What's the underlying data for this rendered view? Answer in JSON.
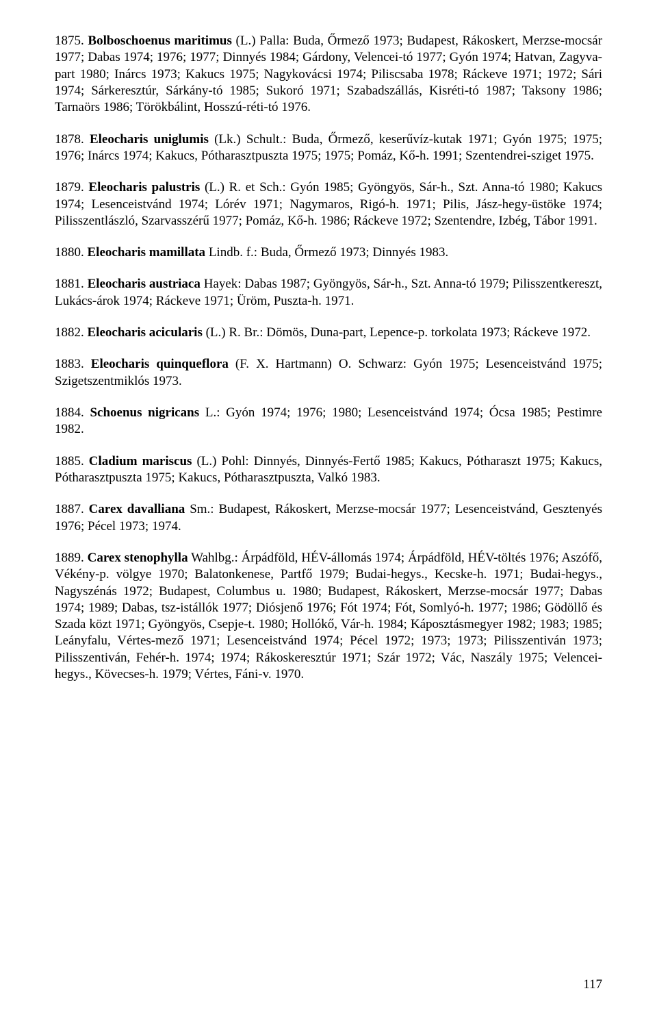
{
  "entries": [
    {
      "num": "1875.",
      "name": "Bolboschoenus maritimus",
      "auth": "(L.) Palla:",
      "body": " Buda, Őrmező 1973; Budapest, Rákoskert, Merzse-mocsár 1977; Dabas 1974; 1976; 1977; Dinnyés 1984; Gárdony, Velencei-tó 1977; Gyón 1974; Hatvan, Zagyva-part 1980; Inárcs 1973; Kakucs 1975; Nagykovácsi 1974; Piliscsaba 1978; Ráckeve 1971; 1972; Sári 1974; Sárkeresztúr, Sárkány-tó 1985; Sukoró 1971; Szabadszállás, Kisréti-tó 1987; Taksony 1986; Tarnaörs 1986; Törökbálint, Hosszú-réti-tó 1976."
    },
    {
      "num": "1878.",
      "name": "Eleocharis uniglumis",
      "auth": "(Lk.) Schult.:",
      "body": " Buda, Őrmező, keserűvíz-kutak 1971; Gyón 1975; 1975; 1976; Inárcs 1974; Kakucs, Pótharasztpuszta 1975; 1975; Pomáz, Kő-h. 1991; Szentendrei-sziget 1975."
    },
    {
      "num": "1879.",
      "name": "Eleocharis palustris",
      "auth": "(L.) R. et Sch.:",
      "body": " Gyón 1985; Gyöngyös, Sár-h., Szt. Anna-tó 1980; Kakucs 1974; Lesenceistvánd 1974; Lórév 1971; Nagymaros, Rigó-h. 1971; Pilis, Jász-hegy-üstöke 1974; Pilisszentlászló, Szarvasszérű 1977; Pomáz, Kő-h. 1986; Ráckeve 1972; Szentendre, Izbég, Tábor 1991."
    },
    {
      "num": "1880.",
      "name": "Eleocharis mamillata",
      "auth": "Lindb. f.:",
      "body": " Buda, Őrmező 1973; Dinnyés 1983."
    },
    {
      "num": "1881.",
      "name": "Eleocharis austriaca",
      "auth": "Hayek:",
      "body": " Dabas 1987; Gyöngyös, Sár-h., Szt. Anna-tó 1979; Pilisszentkereszt, Lukács-árok 1974; Ráckeve 1971; Üröm, Puszta-h. 1971."
    },
    {
      "num": "1882.",
      "name": "Eleocharis acicularis",
      "auth": "(L.) R. Br.:",
      "body": " Dömös, Duna-part, Lepence-p. torkolata 1973; Ráckeve 1972."
    },
    {
      "num": "1883.",
      "name": "Eleocharis quinqueflora",
      "auth": "(F. X. Hartmann) O. Schwarz:",
      "body": " Gyón 1975; Lesenceistvánd 1975; Szigetszentmiklós 1973."
    },
    {
      "num": "1884.",
      "name": "Schoenus nigricans",
      "auth": "L.:",
      "body": " Gyón 1974; 1976; 1980; Lesenceistvánd 1974; Ócsa 1985; Pestimre 1982."
    },
    {
      "num": "1885.",
      "name": "Cladium mariscus",
      "auth": "(L.) Pohl:",
      "body": " Dinnyés, Dinnyés-Fertő 1985; Kakucs, Pótharaszt 1975; Kakucs, Pótharasztpuszta 1975; Kakucs, Pótharasztpuszta, Valkó 1983."
    },
    {
      "num": "1887.",
      "name": "Carex davalliana",
      "auth": "Sm.:",
      "body": " Budapest, Rákoskert, Merzse-mocsár 1977; Lesenceistvánd, Gesztenyés 1976; Pécel 1973; 1974."
    },
    {
      "num": "1889.",
      "name": "Carex stenophylla",
      "auth": "Wahlbg.:",
      "body": " Árpádföld, HÉV-állomás 1974; Árpádföld, HÉV-töltés 1976; Aszófő, Vékény-p. völgye 1970; Balatonkenese, Partfő 1979; Budai-hegys., Kecske-h. 1971; Budai-hegys., Nagyszénás 1972; Budapest, Columbus u. 1980; Budapest, Rákoskert, Merzse-mocsár 1977; Dabas 1974; 1989; Dabas, tsz-istállók 1977; Diósjenő 1976; Fót 1974; Fót, Somlyó-h. 1977; 1986; Gödöllő és Szada közt 1971; Gyöngyös, Csepje-t. 1980; Hollókő, Vár-h. 1984; Káposztásmegyer 1982; 1983; 1985; Leányfalu, Vértes-mező 1971; Lesenceistvánd 1974; Pécel 1972; 1973; 1973; Pilisszentiván 1973; Pilisszentiván, Fehér-h. 1974; 1974; Rákoskeresztúr 1971; Szár 1972; Vác, Naszály 1975; Velencei-hegys., Kövecses-h. 1979; Vértes, Fáni-v. 1970."
    }
  ],
  "page_number": "117"
}
